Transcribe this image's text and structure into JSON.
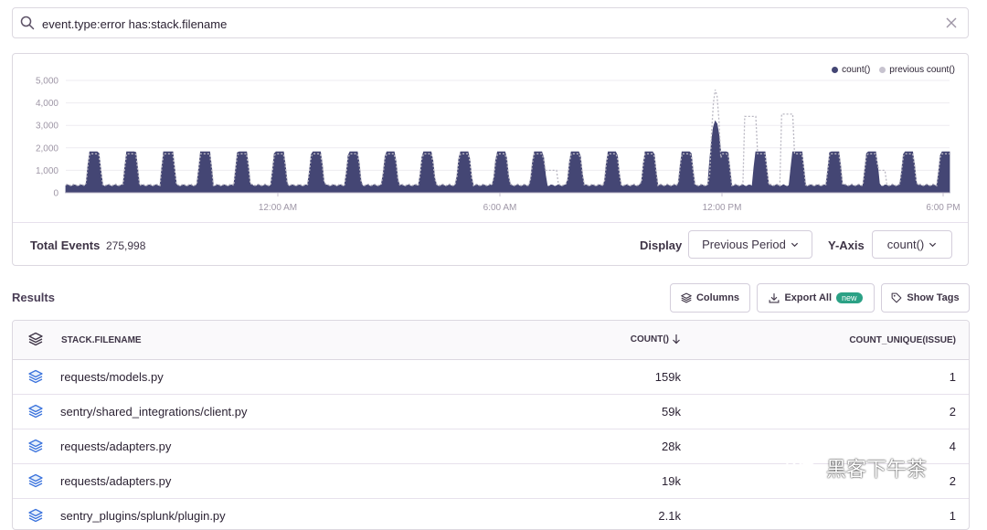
{
  "search": {
    "query": "event.type:error has:stack.filename"
  },
  "legend": {
    "series1": "count()",
    "series2": "previous count()"
  },
  "chart_data": {
    "type": "area",
    "y_ticks": [
      "5,000",
      "4,000",
      "3,000",
      "2,000",
      "1,000",
      "0"
    ],
    "x_ticks": [
      "12:00 AM",
      "6:00 AM",
      "12:00 PM",
      "6:00 PM"
    ],
    "ylim": [
      0,
      5000
    ],
    "series": [
      {
        "name": "count()",
        "color": "#444674"
      },
      {
        "name": "previous count()",
        "color": "#b9b7c2"
      }
    ]
  },
  "footer": {
    "total_label": "Total Events",
    "total_value": "275,998",
    "display_label": "Display",
    "display_value": "Previous Period",
    "yaxis_label": "Y-Axis",
    "yaxis_value": "count()"
  },
  "results": {
    "title": "Results",
    "columns_btn": "Columns",
    "export_btn": "Export All",
    "export_badge": "new",
    "tags_btn": "Show Tags"
  },
  "table": {
    "headers": [
      "STACK.FILENAME",
      "COUNT()",
      "COUNT_UNIQUE(ISSUE)"
    ],
    "rows": [
      {
        "filename": "requests/models.py",
        "count": "159k",
        "unique": "1"
      },
      {
        "filename": "sentry/shared_integrations/client.py",
        "count": "59k",
        "unique": "2"
      },
      {
        "filename": "requests/adapters.py",
        "count": "28k",
        "unique": "4"
      },
      {
        "filename": "requests/adapters.py",
        "count": "19k",
        "unique": "2"
      },
      {
        "filename": "sentry_plugins/splunk/plugin.py",
        "count": "2.1k",
        "unique": "1"
      }
    ]
  },
  "watermark": {
    "text": "黑客下午茶"
  }
}
